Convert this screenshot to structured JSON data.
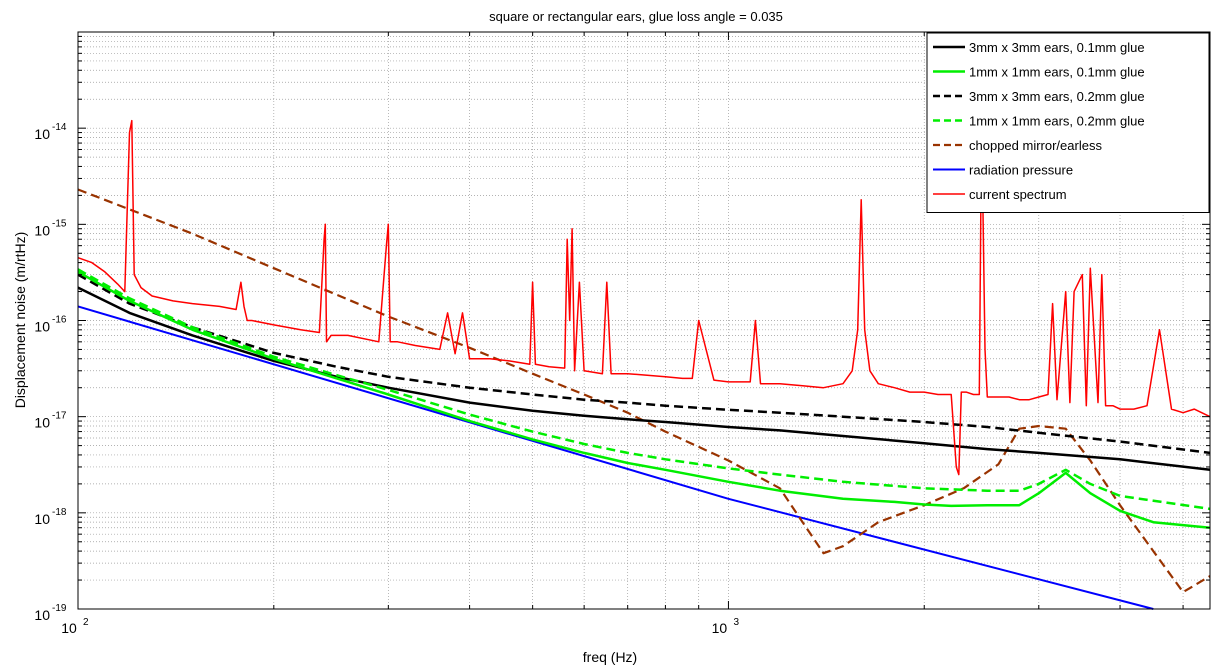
{
  "chart_data": {
    "type": "line",
    "title": "square or rectangular ears, glue loss angle = 0.035",
    "xlabel": "freq (Hz)",
    "ylabel": "Displacement noise (m/rtHz)",
    "xscale": "log",
    "yscale": "log",
    "xlim": [
      100,
      5500
    ],
    "ylim": [
      1e-19,
      1e-13
    ],
    "grid": true,
    "legend_position": "top-right",
    "xticks": [
      {
        "base": "10",
        "exp": "2",
        "value": 100
      },
      {
        "base": "10",
        "exp": "3",
        "value": 1000
      }
    ],
    "yticks": [
      {
        "base": "10",
        "exp": "-14",
        "value": 1e-14
      },
      {
        "base": "10",
        "exp": "-15",
        "value": 1e-15
      },
      {
        "base": "10",
        "exp": "-16",
        "value": 1e-16
      },
      {
        "base": "10",
        "exp": "-17",
        "value": 1e-17
      },
      {
        "base": "10",
        "exp": "-18",
        "value": 1e-18
      },
      {
        "base": "10",
        "exp": "-19",
        "value": 1e-19
      }
    ],
    "series": [
      {
        "name": "3mm x 3mm ears, 0.1mm glue",
        "color": "#000000",
        "dash": "solid",
        "width": 2.5,
        "x": [
          100,
          120,
          150,
          200,
          250,
          300,
          400,
          500,
          600,
          700,
          800,
          1000,
          1200,
          1500,
          2000,
          2500,
          3000,
          4000,
          5500
        ],
        "y": [
          2.2e-16,
          1.2e-16,
          7e-17,
          3.8e-17,
          2.6e-17,
          2e-17,
          1.4e-17,
          1.15e-17,
          1.02e-17,
          9.4e-18,
          8.8e-18,
          7.8e-18,
          7.2e-18,
          6.3e-18,
          5.3e-18,
          4.6e-18,
          4.2e-18,
          3.6e-18,
          2.8e-18
        ]
      },
      {
        "name": "1mm x 1mm ears, 0.1mm glue",
        "color": "#00ee00",
        "dash": "solid",
        "width": 2.5,
        "x": [
          100,
          120,
          150,
          200,
          250,
          300,
          400,
          500,
          600,
          700,
          800,
          1000,
          1200,
          1500,
          1800,
          2000,
          2200,
          2500,
          2800,
          3000,
          3300,
          3600,
          4000,
          4500,
          5500
        ],
        "y": [
          3.2e-16,
          1.6e-16,
          8e-17,
          4e-17,
          2.5e-17,
          1.7e-17,
          9e-18,
          5.8e-18,
          4.2e-18,
          3.3e-18,
          2.8e-18,
          2.1e-18,
          1.7e-18,
          1.4e-18,
          1.3e-18,
          1.22e-18,
          1.18e-18,
          1.2e-18,
          1.2e-18,
          1.6e-18,
          2.6e-18,
          1.6e-18,
          1.05e-18,
          8e-19,
          7e-19
        ]
      },
      {
        "name": "3mm x 3mm ears, 0.2mm glue",
        "color": "#000000",
        "dash": "dashed",
        "width": 2.5,
        "x": [
          100,
          120,
          150,
          200,
          250,
          300,
          400,
          500,
          600,
          700,
          800,
          1000,
          1200,
          1500,
          2000,
          2500,
          3000,
          4000,
          5500
        ],
        "y": [
          3e-16,
          1.5e-16,
          8.5e-17,
          4.6e-17,
          3.3e-17,
          2.6e-17,
          2e-17,
          1.7e-17,
          1.5e-17,
          1.4e-17,
          1.3e-17,
          1.18e-17,
          1.1e-17,
          1e-17,
          8.8e-18,
          7.8e-18,
          6.8e-18,
          5.5e-18,
          4.2e-18
        ]
      },
      {
        "name": "1mm x 1mm ears, 0.2mm glue",
        "color": "#00ee00",
        "dash": "dashed",
        "width": 2.5,
        "x": [
          100,
          120,
          150,
          200,
          250,
          300,
          400,
          500,
          600,
          700,
          800,
          1000,
          1200,
          1500,
          2000,
          2500,
          2800,
          3000,
          3300,
          3600,
          4000,
          5500
        ],
        "y": [
          3.4e-16,
          1.7e-16,
          8.5e-17,
          4.2e-17,
          2.7e-17,
          1.9e-17,
          1.05e-17,
          7e-18,
          5.2e-18,
          4.2e-18,
          3.6e-18,
          2.9e-18,
          2.5e-18,
          2.1e-18,
          1.8e-18,
          1.7e-18,
          1.7e-18,
          2e-18,
          2.8e-18,
          2e-18,
          1.5e-18,
          1.1e-18
        ]
      },
      {
        "name": "chopped mirror/earless",
        "color": "#993300",
        "dash": "dashed",
        "width": 2.2,
        "x": [
          100,
          150,
          200,
          300,
          400,
          500,
          600,
          700,
          800,
          1000,
          1200,
          1300,
          1400,
          1500,
          1700,
          2000,
          2300,
          2600,
          2800,
          3000,
          3300,
          3600,
          4000,
          4500,
          5000,
          5500
        ],
        "y": [
          2.3e-15,
          8e-16,
          3.5e-16,
          1.1e-16,
          5.2e-17,
          2.8e-17,
          1.7e-17,
          1.1e-17,
          7e-18,
          3.5e-18,
          1.8e-18,
          8e-19,
          3.8e-19,
          4.5e-19,
          8e-19,
          1.2e-18,
          1.8e-18,
          3.2e-18,
          7.5e-18,
          8e-18,
          7.5e-18,
          3.5e-18,
          1.2e-18,
          4e-19,
          1.5e-19,
          2.2e-19
        ]
      },
      {
        "name": "radiation pressure",
        "color": "#0000ff",
        "dash": "solid",
        "width": 2,
        "x": [
          100,
          1000,
          4500
        ],
        "y": [
          1.4e-16,
          1.4e-18,
          1e-19
        ]
      },
      {
        "name": "current spectrum",
        "color": "#ff0000",
        "dash": "solid",
        "width": 1.5,
        "x": [
          100,
          105,
          110,
          115,
          118,
          120,
          121,
          122,
          125,
          130,
          140,
          150,
          165,
          175,
          178,
          180,
          182,
          185,
          200,
          220,
          235,
          239,
          240,
          241,
          245,
          260,
          290,
          298,
          300,
          302,
          310,
          330,
          360,
          370,
          380,
          390,
          400,
          430,
          460,
          495,
          500,
          505,
          530,
          560,
          565,
          570,
          575,
          580,
          590,
          600,
          640,
          650,
          660,
          700,
          750,
          800,
          850,
          880,
          900,
          950,
          1000,
          1080,
          1100,
          1120,
          1200,
          1300,
          1400,
          1500,
          1550,
          1580,
          1600,
          1620,
          1650,
          1700,
          1800,
          1900,
          2000,
          2100,
          2200,
          2240,
          2260,
          2280,
          2320,
          2380,
          2430,
          2450,
          2480,
          2500,
          2600,
          2700,
          2800,
          2900,
          3000,
          3100,
          3150,
          3200,
          3300,
          3350,
          3400,
          3500,
          3550,
          3600,
          3700,
          3750,
          3800,
          3900,
          4000,
          4200,
          4400,
          4600,
          4800,
          5000,
          5200,
          5500
        ],
        "y": [
          4.5e-16,
          4e-16,
          3.2e-16,
          2.4e-16,
          2e-16,
          9e-15,
          1.2e-14,
          3e-16,
          2.2e-16,
          1.8e-16,
          1.6e-16,
          1.5e-16,
          1.4e-16,
          1.3e-16,
          2.5e-16,
          1.4e-16,
          1e-16,
          1e-16,
          9e-17,
          8e-17,
          7.5e-17,
          7e-16,
          1e-15,
          6e-17,
          7e-17,
          7e-17,
          6e-17,
          6e-16,
          1e-15,
          6e-17,
          6e-17,
          5.5e-17,
          5e-17,
          1.2e-16,
          4.5e-17,
          1.2e-16,
          4e-17,
          4e-17,
          3.8e-17,
          3.5e-17,
          2.5e-16,
          3.5e-17,
          3.3e-17,
          3.2e-17,
          7e-16,
          1e-16,
          9e-16,
          3e-17,
          2.5e-16,
          3e-17,
          2.8e-17,
          2.5e-16,
          2.8e-17,
          2.8e-17,
          2.7e-17,
          2.6e-17,
          2.5e-17,
          2.5e-17,
          1e-16,
          2.4e-17,
          2.3e-17,
          2.3e-17,
          1e-16,
          2.2e-17,
          2.2e-17,
          2.1e-17,
          2e-17,
          2.2e-17,
          3e-17,
          8e-17,
          1.8e-15,
          8e-17,
          3e-17,
          2.2e-17,
          2e-17,
          1.8e-17,
          1.8e-17,
          1.7e-17,
          1.7e-17,
          3e-18,
          2.5e-18,
          1.8e-17,
          1.8e-17,
          1.7e-17,
          1.7e-17,
          1.3e-14,
          5e-17,
          1.6e-17,
          1.6e-17,
          1.6e-17,
          1.5e-17,
          1.5e-17,
          1.6e-17,
          1.7e-17,
          1.5e-16,
          1.5e-17,
          2e-16,
          1.4e-17,
          2e-16,
          3e-16,
          1.3e-17,
          3.5e-16,
          1.4e-17,
          3e-16,
          1.3e-17,
          1.3e-17,
          1.2e-17,
          1.2e-17,
          1.3e-17,
          8e-17,
          1.2e-17,
          1.1e-17,
          1.2e-17,
          1e-17
        ]
      }
    ]
  }
}
